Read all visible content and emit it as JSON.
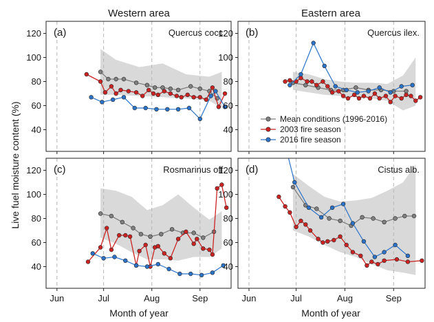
{
  "figure": {
    "ylabel": "Live fuel moisture content (%)",
    "column_titles": [
      "Western area",
      "Eastern area"
    ],
    "xlabel": "Month of year",
    "legend": [
      {
        "label": "Mean conditions (1996-2016)",
        "color": "#808080"
      },
      {
        "label": "2003 fire season",
        "color": "#cc2222"
      },
      {
        "label": "2016 fire season",
        "color": "#2a73c9"
      }
    ],
    "colors": {
      "mean": "#808080",
      "s2003": "#cc2222",
      "s2016": "#2a73c9",
      "band": "#d9d9d9"
    }
  },
  "chart_data": [
    {
      "type": "line",
      "panel": "(a)",
      "species": "Quercus cocc.",
      "column": "Western area",
      "xlim": [
        145,
        264
      ],
      "ylim": [
        22,
        130
      ],
      "x_ticks": [
        {
          "day": 152,
          "label": "Jun"
        },
        {
          "day": 182,
          "label": "Jul"
        },
        {
          "day": 213,
          "label": "Aug"
        },
        {
          "day": 244,
          "label": "Sep"
        }
      ],
      "y_ticks": [
        40,
        60,
        80,
        100,
        120
      ],
      "band": {
        "x": [
          180,
          190,
          205,
          220,
          235,
          250,
          258
        ],
        "lower": [
          69,
          69,
          68,
          67,
          66,
          64,
          58
        ],
        "upper": [
          107,
          98,
          92,
          95,
          86,
          84,
          88
        ]
      },
      "series": [
        {
          "name": "Mean conditions (1996-2016)",
          "x": [
            180,
            185,
            190,
            195,
            203,
            210,
            215,
            220,
            225,
            230,
            238,
            244,
            250,
            255
          ],
          "y": [
            88,
            82,
            82,
            82,
            79,
            77,
            75,
            75,
            74,
            73,
            76,
            74,
            72,
            66
          ]
        },
        {
          "name": "2003 fire season",
          "x": [
            171,
            180,
            183,
            187,
            190,
            193,
            198,
            203,
            207,
            211,
            214,
            217,
            221,
            225,
            229,
            232,
            236,
            240,
            244,
            248,
            252,
            256,
            260
          ],
          "y": [
            86,
            80,
            71,
            76,
            70,
            73,
            72,
            71,
            68,
            73,
            70,
            69,
            72,
            70,
            68,
            67,
            69,
            67,
            67,
            65,
            75,
            59,
            70
          ]
        },
        {
          "name": "2016 fire season",
          "x": [
            174,
            181,
            188,
            195,
            202,
            209,
            216,
            223,
            230,
            237,
            244,
            251,
            254,
            260
          ],
          "y": [
            67,
            63,
            65,
            67,
            58,
            58,
            57,
            57,
            57,
            58,
            49,
            68,
            72,
            59
          ]
        }
      ]
    },
    {
      "type": "line",
      "panel": "(b)",
      "species": "Quercus ilex.",
      "column": "Eastern area",
      "xlim": [
        145,
        264
      ],
      "ylim": [
        22,
        130
      ],
      "x_ticks": [
        {
          "day": 152,
          "label": "Jun"
        },
        {
          "day": 182,
          "label": "Jul"
        },
        {
          "day": 213,
          "label": "Aug"
        },
        {
          "day": 244,
          "label": "Sep"
        }
      ],
      "y_ticks": [
        40,
        60,
        80,
        100,
        120
      ],
      "band": {
        "x": [
          180,
          190,
          200,
          210,
          220,
          230,
          240,
          250,
          258
        ],
        "lower": [
          73,
          71,
          69,
          68,
          67,
          66,
          64,
          56,
          60
        ],
        "upper": [
          88,
          86,
          82,
          80,
          79,
          79,
          78,
          85,
          100
        ]
      },
      "series": [
        {
          "name": "Mean conditions (1996-2016)",
          "x": [
            180,
            188,
            196,
            204,
            212,
            220,
            228,
            236,
            244,
            252
          ],
          "y": [
            79,
            77,
            75,
            73,
            73,
            75,
            73,
            73,
            72,
            72
          ]
        },
        {
          "name": "2003 fire season",
          "x": [
            175,
            178,
            182,
            185,
            189,
            192,
            195,
            199,
            202,
            205,
            209,
            212,
            215,
            219,
            222,
            225,
            229,
            232,
            235,
            239,
            242,
            245,
            249,
            252,
            255,
            258,
            261
          ],
          "y": [
            80,
            81,
            80,
            83,
            80,
            80,
            77,
            80,
            76,
            71,
            72,
            68,
            66,
            69,
            66,
            68,
            66,
            70,
            66,
            68,
            63,
            68,
            66,
            69,
            68,
            64,
            67
          ]
        },
        {
          "name": "2016 fire season",
          "x": [
            178,
            185,
            193,
            200,
            207,
            214,
            221,
            228,
            235,
            242,
            249,
            256
          ],
          "y": [
            77,
            86,
            112,
            93,
            76,
            73,
            71,
            72,
            75,
            71,
            76,
            77
          ]
        }
      ]
    },
    {
      "type": "line",
      "panel": "(c)",
      "species": "Rosmarinus off.",
      "column": "Western area",
      "xlim": [
        145,
        264
      ],
      "ylim": [
        22,
        130
      ],
      "x_ticks": [
        {
          "day": 152,
          "label": "Jun"
        },
        {
          "day": 182,
          "label": "Jul"
        },
        {
          "day": 213,
          "label": "Aug"
        },
        {
          "day": 244,
          "label": "Sep"
        }
      ],
      "y_ticks": [
        40,
        60,
        80,
        100,
        120
      ],
      "band": {
        "x": [
          180,
          190,
          200,
          210,
          220,
          230,
          240,
          250,
          258
        ],
        "lower": [
          64,
          59,
          52,
          46,
          46,
          45,
          48,
          48,
          55
        ],
        "upper": [
          105,
          103,
          98,
          87,
          91,
          100,
          89,
          79,
          86
        ]
      },
      "series": [
        {
          "name": "Mean conditions (1996-2016)",
          "x": [
            180,
            187,
            194,
            201,
            206,
            212,
            219,
            226,
            233,
            240,
            246,
            253
          ],
          "y": [
            84,
            82,
            77,
            72,
            67,
            65,
            67,
            71,
            68,
            68,
            64,
            69
          ]
        },
        {
          "name": "2003 fire season",
          "x": [
            172,
            180,
            184,
            187,
            192,
            196,
            199,
            203,
            205,
            209,
            212,
            215,
            217,
            221,
            225,
            230,
            235,
            240,
            242,
            246,
            250,
            252,
            255,
            258,
            261
          ],
          "y": [
            44,
            56,
            72,
            54,
            66,
            66,
            65,
            41,
            53,
            58,
            40,
            56,
            57,
            51,
            47,
            63,
            69,
            59,
            63,
            55,
            54,
            50,
            105,
            108,
            89
          ]
        },
        {
          "name": "2016 fire season",
          "x": [
            175,
            182,
            189,
            196,
            203,
            210,
            217,
            224,
            231,
            238,
            245,
            252,
            259
          ],
          "y": [
            51,
            47,
            48,
            45,
            41,
            40,
            42,
            38,
            34,
            34,
            33,
            35,
            41
          ]
        }
      ]
    },
    {
      "type": "line",
      "panel": "(d)",
      "species": "Cistus alb.",
      "column": "Eastern area",
      "xlim": [
        145,
        264
      ],
      "ylim": [
        22,
        130
      ],
      "x_ticks": [
        {
          "day": 152,
          "label": "Jun"
        },
        {
          "day": 182,
          "label": "Jul"
        },
        {
          "day": 213,
          "label": "Aug"
        },
        {
          "day": 244,
          "label": "Sep"
        }
      ],
      "y_ticks": [
        40,
        60,
        80,
        100,
        120
      ],
      "band": {
        "x": [
          180,
          190,
          200,
          210,
          220,
          230,
          240,
          250,
          258
        ],
        "lower": [
          70,
          65,
          58,
          52,
          48,
          42,
          37,
          35,
          33
        ],
        "upper": [
          117,
          107,
          98,
          94,
          95,
          97,
          103,
          110,
          125
        ]
      },
      "series": [
        {
          "name": "Mean conditions (1996-2016)",
          "x": [
            180,
            188,
            195,
            203,
            210,
            217,
            224,
            231,
            238,
            245,
            251,
            257
          ],
          "y": [
            106,
            91,
            88,
            80,
            78,
            74,
            81,
            80,
            77,
            80,
            82,
            82
          ]
        },
        {
          "name": "2003 fire season",
          "x": [
            171,
            175,
            178,
            182,
            185,
            188,
            191,
            196,
            199,
            202,
            206,
            210,
            214,
            218,
            223,
            227,
            230,
            234,
            238,
            246,
            253,
            262
          ],
          "y": [
            98,
            90,
            85,
            73,
            78,
            75,
            70,
            63,
            60,
            61,
            62,
            65,
            58,
            52,
            49,
            41,
            44,
            42,
            45,
            46,
            44,
            45
          ]
        },
        {
          "name": "2016 fire season",
          "x": [
            176,
            181,
            190,
            198,
            205,
            212,
            218,
            225,
            232,
            238,
            245,
            253
          ],
          "y": [
            136,
            110,
            89,
            81,
            89,
            92,
            76,
            61,
            48,
            52,
            58,
            49
          ]
        }
      ]
    }
  ]
}
